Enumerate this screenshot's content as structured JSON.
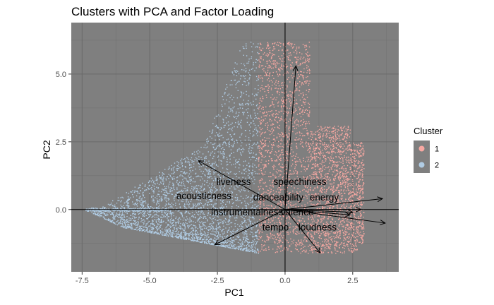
{
  "chart_data": {
    "type": "scatter",
    "title": "Clusters with PCA and Factor Loading",
    "xlabel": "PC1",
    "ylabel": "PC2",
    "xlim": [
      -7.9,
      4.2
    ],
    "ylim": [
      -2.3,
      6.9
    ],
    "x_ticks": [
      -7.5,
      -5.0,
      -2.5,
      0.0,
      2.5
    ],
    "x_tick_labels": [
      "-7.5",
      "-5.0",
      "-2.5",
      "0.0",
      "2.5"
    ],
    "y_ticks": [
      0.0,
      2.5,
      5.0
    ],
    "y_tick_labels": [
      "0.0",
      "2.5",
      "5.0"
    ],
    "grid": true,
    "background": "#7f7f7f",
    "legend": {
      "title": "Cluster",
      "placement": "right",
      "entries": [
        {
          "label": "1",
          "color": "#f8a8a2"
        },
        {
          "label": "2",
          "color": "#b0cce4"
        }
      ]
    },
    "series": [
      {
        "name": "1",
        "color": "#f8a8a2",
        "region": "PC1 approx -1.0 to 3.0, PC2 approx -1.6 to 6.2"
      },
      {
        "name": "2",
        "color": "#b0cce4",
        "region": "PC1 approx -7.3 to -1.0, PC2 approx -1.6 to 6.2"
      }
    ],
    "loadings": [
      {
        "name": "liveness",
        "x": -3.2,
        "y": 1.8
      },
      {
        "name": "speechiness",
        "x": 0.4,
        "y": 5.3
      },
      {
        "name": "acousticness",
        "x": -2.6,
        "y": -1.3
      },
      {
        "name": "danceability",
        "x": 1.3,
        "y": -1.6
      },
      {
        "name": "energy",
        "x": 3.6,
        "y": 0.4
      },
      {
        "name": "instrumentalness",
        "x": 2.8,
        "y": 0.0
      },
      {
        "name": "valence",
        "x": 2.5,
        "y": -0.1
      },
      {
        "name": "tempo",
        "x": 2.4,
        "y": -0.2
      },
      {
        "name": "loudness",
        "x": 3.7,
        "y": -0.5
      }
    ],
    "loading_labels": [
      {
        "text": "liveness",
        "x": -1.9,
        "y": 1.0
      },
      {
        "text": "speechiness",
        "x": 0.55,
        "y": 1.0
      },
      {
        "text": "acousticness",
        "x": -3.0,
        "y": 0.48
      },
      {
        "text": "danceability",
        "x": -0.25,
        "y": 0.43
      },
      {
        "text": "energy",
        "x": 1.45,
        "y": 0.43
      },
      {
        "text": "instrumentalness",
        "x": -1.4,
        "y": -0.12
      },
      {
        "text": "valence",
        "x": 0.45,
        "y": -0.12
      },
      {
        "text": "tempo",
        "x": -0.35,
        "y": -0.68
      },
      {
        "text": "loudness",
        "x": 1.2,
        "y": -0.68
      }
    ]
  }
}
